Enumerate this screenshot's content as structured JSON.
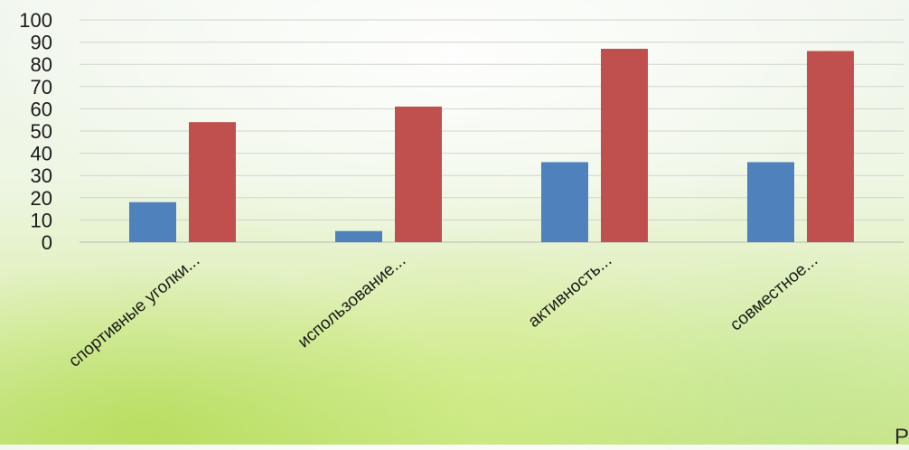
{
  "chart_data": {
    "type": "bar",
    "categories": [
      "спортивные уголки...",
      "использование...",
      "активность...",
      "совместное..."
    ],
    "series": [
      {
        "color": "#4f81bd",
        "values": [
          18,
          5,
          36,
          36
        ]
      },
      {
        "color": "#c0504d",
        "values": [
          54,
          61,
          87,
          86
        ]
      }
    ],
    "ylim": [
      0,
      100
    ],
    "yticks": [
      0,
      10,
      20,
      30,
      40,
      50,
      60,
      70,
      80,
      90,
      100
    ],
    "grid": true,
    "legend": "none"
  },
  "corner_text": "Р"
}
